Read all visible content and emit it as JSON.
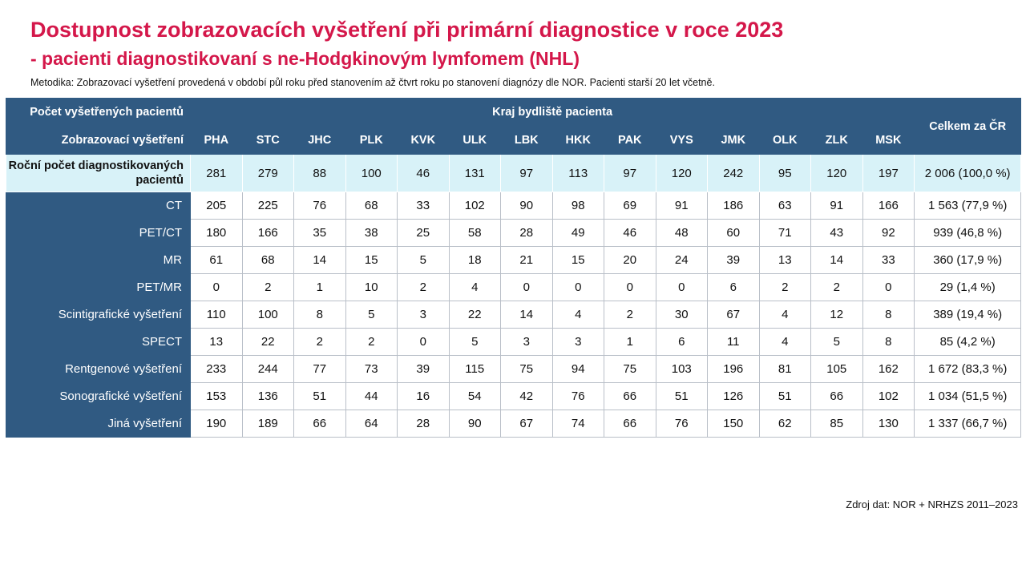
{
  "title": "Dostupnost zobrazovacích vyšetření při primární diagnostice v roce 2023",
  "subtitle": "- pacienti diagnostikovaní s ne-Hodgkinovým lymfomem (NHL)",
  "note": "Metodika: Zobrazovací vyšetření provedená v období půl roku před stanovením až čtvrt roku po stanovení diagnózy dle NOR. Pacienti starší 20 let včetně.",
  "source": "Zdroj dat: NOR + NRHZS 2011–2023",
  "colors": {
    "title": "#d4174a",
    "header_bg": "#305a82",
    "highlight_row_bg": "#d8f2f8"
  },
  "chart_data": {
    "type": "table",
    "header": {
      "top_left": "Počet vyšetřených pacientů",
      "group_label": "Kraj bydliště pacienta",
      "row_header": "Zobrazovací vyšetření",
      "total_label": "Celkem za ČR"
    },
    "columns": [
      "PHA",
      "STC",
      "JHC",
      "PLK",
      "KVK",
      "ULK",
      "LBK",
      "HKK",
      "PAK",
      "VYS",
      "JMK",
      "OLK",
      "ZLK",
      "MSK"
    ],
    "annual": {
      "label": "Roční počet diagnostikovaných pacientů",
      "values": [
        281,
        279,
        88,
        100,
        46,
        131,
        97,
        113,
        97,
        120,
        242,
        95,
        120,
        197
      ],
      "total": "2 006 (100,0 %)"
    },
    "rows": [
      {
        "label": "CT",
        "values": [
          205,
          225,
          76,
          68,
          33,
          102,
          90,
          98,
          69,
          91,
          186,
          63,
          91,
          166
        ],
        "total": "1 563 (77,9 %)"
      },
      {
        "label": "PET/CT",
        "values": [
          180,
          166,
          35,
          38,
          25,
          58,
          28,
          49,
          46,
          48,
          60,
          71,
          43,
          92
        ],
        "total": "939 (46,8 %)"
      },
      {
        "label": "MR",
        "values": [
          61,
          68,
          14,
          15,
          5,
          18,
          21,
          15,
          20,
          24,
          39,
          13,
          14,
          33
        ],
        "total": "360 (17,9 %)"
      },
      {
        "label": "PET/MR",
        "values": [
          0,
          2,
          1,
          10,
          2,
          4,
          0,
          0,
          0,
          0,
          6,
          2,
          2,
          0
        ],
        "total": "29 (1,4 %)"
      },
      {
        "label": "Scintigrafické vyšetření",
        "values": [
          110,
          100,
          8,
          5,
          3,
          22,
          14,
          4,
          2,
          30,
          67,
          4,
          12,
          8
        ],
        "total": "389 (19,4 %)"
      },
      {
        "label": "SPECT",
        "values": [
          13,
          22,
          2,
          2,
          0,
          5,
          3,
          3,
          1,
          6,
          11,
          4,
          5,
          8
        ],
        "total": "85 (4,2 %)"
      },
      {
        "label": "Rentgenové vyšetření",
        "values": [
          233,
          244,
          77,
          73,
          39,
          115,
          75,
          94,
          75,
          103,
          196,
          81,
          105,
          162
        ],
        "total": "1 672 (83,3 %)"
      },
      {
        "label": "Sonografické vyšetření",
        "values": [
          153,
          136,
          51,
          44,
          16,
          54,
          42,
          76,
          66,
          51,
          126,
          51,
          66,
          102
        ],
        "total": "1 034 (51,5 %)"
      },
      {
        "label": "Jiná vyšetření",
        "values": [
          190,
          189,
          66,
          64,
          28,
          90,
          67,
          74,
          66,
          76,
          150,
          62,
          85,
          130
        ],
        "total": "1 337 (66,7 %)"
      }
    ]
  }
}
